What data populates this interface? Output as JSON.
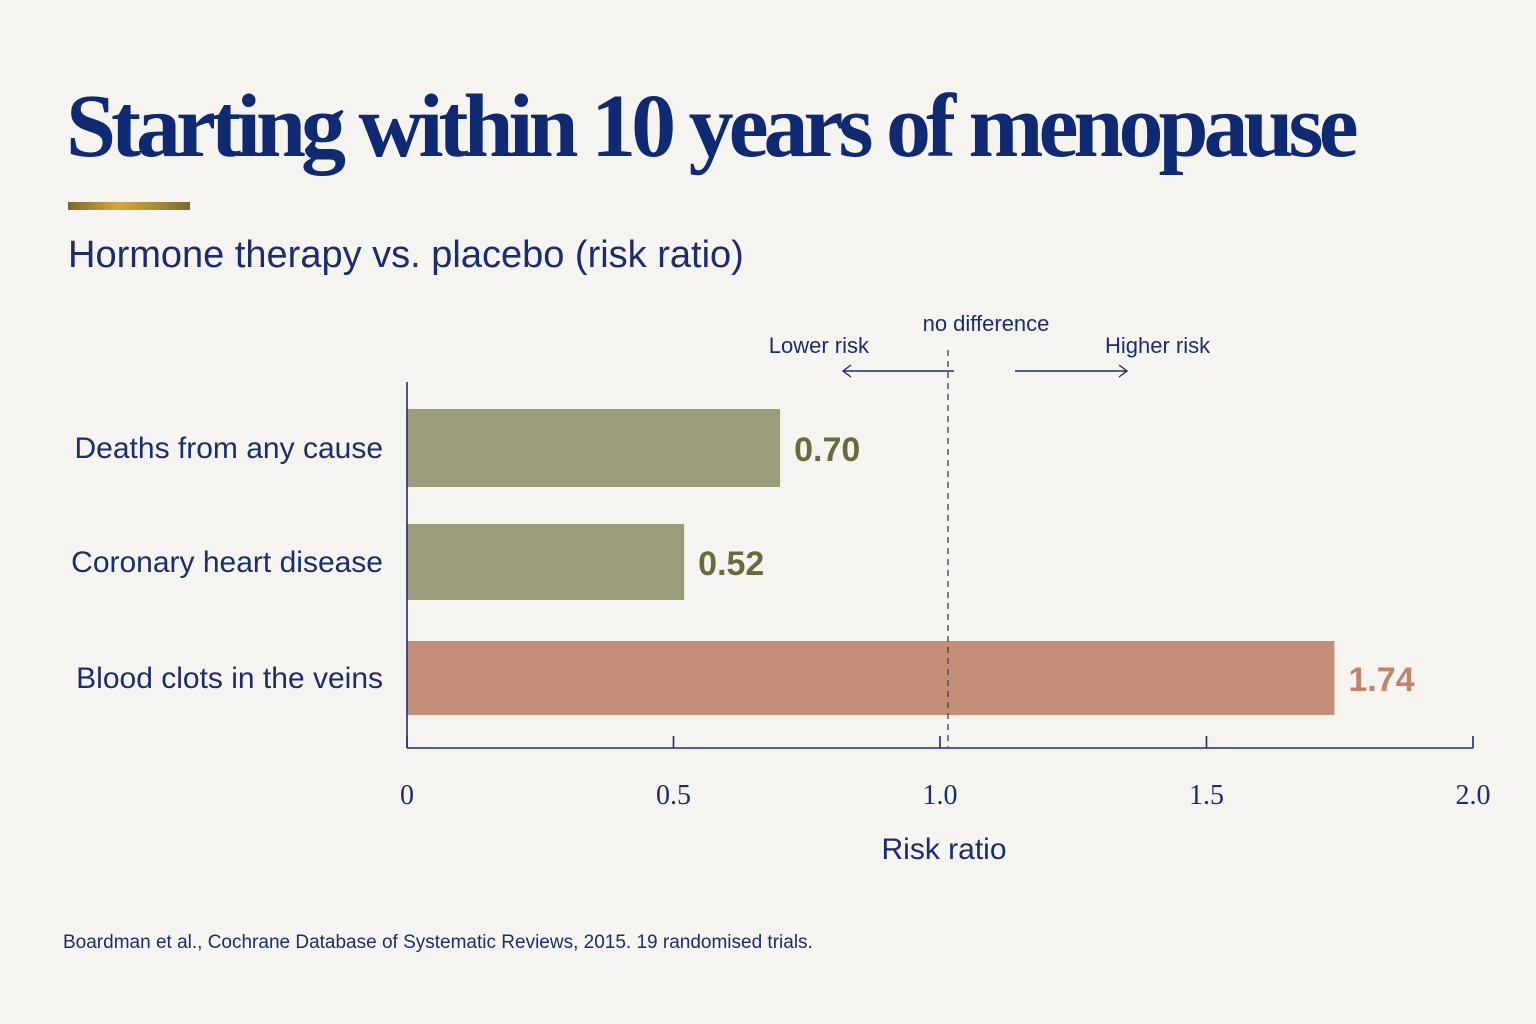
{
  "title": "Starting within 10 years of menopause",
  "subtitle": "Hormone therapy vs. placebo (risk ratio)",
  "source": "Boardman et al., Cochrane Database of Systematic Reviews, 2015. 19 randomised trials.",
  "colors": {
    "lower": "#9b9d7a",
    "lower_label": "#6b6a3c",
    "higher": "#c48e78",
    "higher_label": "#c0826a",
    "axis": "#1c2f6b"
  },
  "chart_data": {
    "type": "bar",
    "orientation": "horizontal",
    "categories": [
      "Deaths from any cause",
      "Coronary heart disease",
      "Blood clots in the veins"
    ],
    "values": [
      0.7,
      0.52,
      1.74
    ],
    "value_labels": [
      "0.70",
      "0.52",
      "1.74"
    ],
    "bar_colors": [
      "#9b9d7a",
      "#9b9d7a",
      "#c48e78"
    ],
    "label_colors": [
      "#6b6a3c",
      "#6b6a3c",
      "#c0826a"
    ],
    "xlabel": "Risk ratio",
    "xlim": [
      0,
      2.0
    ],
    "xticks": [
      0,
      0.5,
      1.0,
      1.5,
      2.0
    ],
    "xtick_labels": [
      "0",
      "0.5",
      "1.0",
      "1.5",
      "2.0"
    ],
    "reference_line": {
      "x": 1.0,
      "label": "no difference",
      "style": "dashed"
    },
    "direction_labels": {
      "left": "Lower risk",
      "right": "Higher risk"
    },
    "grid": false,
    "legend": "none"
  }
}
